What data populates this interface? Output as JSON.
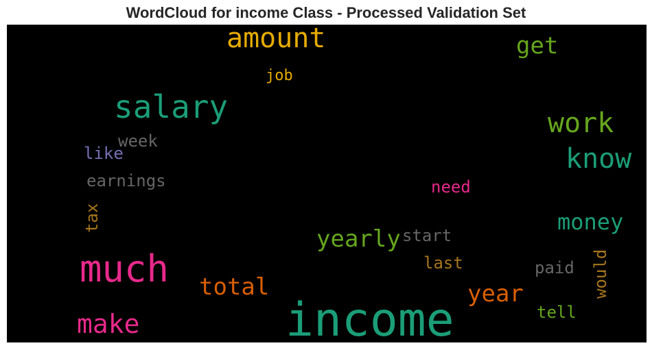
{
  "title": "WordCloud for income Class - Processed Validation Set",
  "words": [
    {
      "text": "income",
      "color": "#1b9e77"
    },
    {
      "text": "much",
      "color": "#e7298a"
    },
    {
      "text": "salary",
      "color": "#1b9e77"
    },
    {
      "text": "amount",
      "color": "#e6ab02"
    },
    {
      "text": "work",
      "color": "#66a61e"
    },
    {
      "text": "know",
      "color": "#1b9e77"
    },
    {
      "text": "make",
      "color": "#e7298a"
    },
    {
      "text": "money",
      "color": "#1b9e77"
    },
    {
      "text": "yearly",
      "color": "#66a61e"
    },
    {
      "text": "total",
      "color": "#d95f02"
    },
    {
      "text": "year",
      "color": "#d95f02"
    },
    {
      "text": "get",
      "color": "#66a61e"
    },
    {
      "text": "earnings",
      "color": "#666666"
    },
    {
      "text": "week",
      "color": "#666666"
    },
    {
      "text": "like",
      "color": "#7570b3"
    },
    {
      "text": "tax",
      "color": "#a6761d"
    },
    {
      "text": "job",
      "color": "#e6ab02"
    },
    {
      "text": "need",
      "color": "#e7298a"
    },
    {
      "text": "start",
      "color": "#666666"
    },
    {
      "text": "last",
      "color": "#a6761d"
    },
    {
      "text": "paid",
      "color": "#666666"
    },
    {
      "text": "would",
      "color": "#a6761d"
    },
    {
      "text": "tell",
      "color": "#66a61e"
    }
  ]
}
